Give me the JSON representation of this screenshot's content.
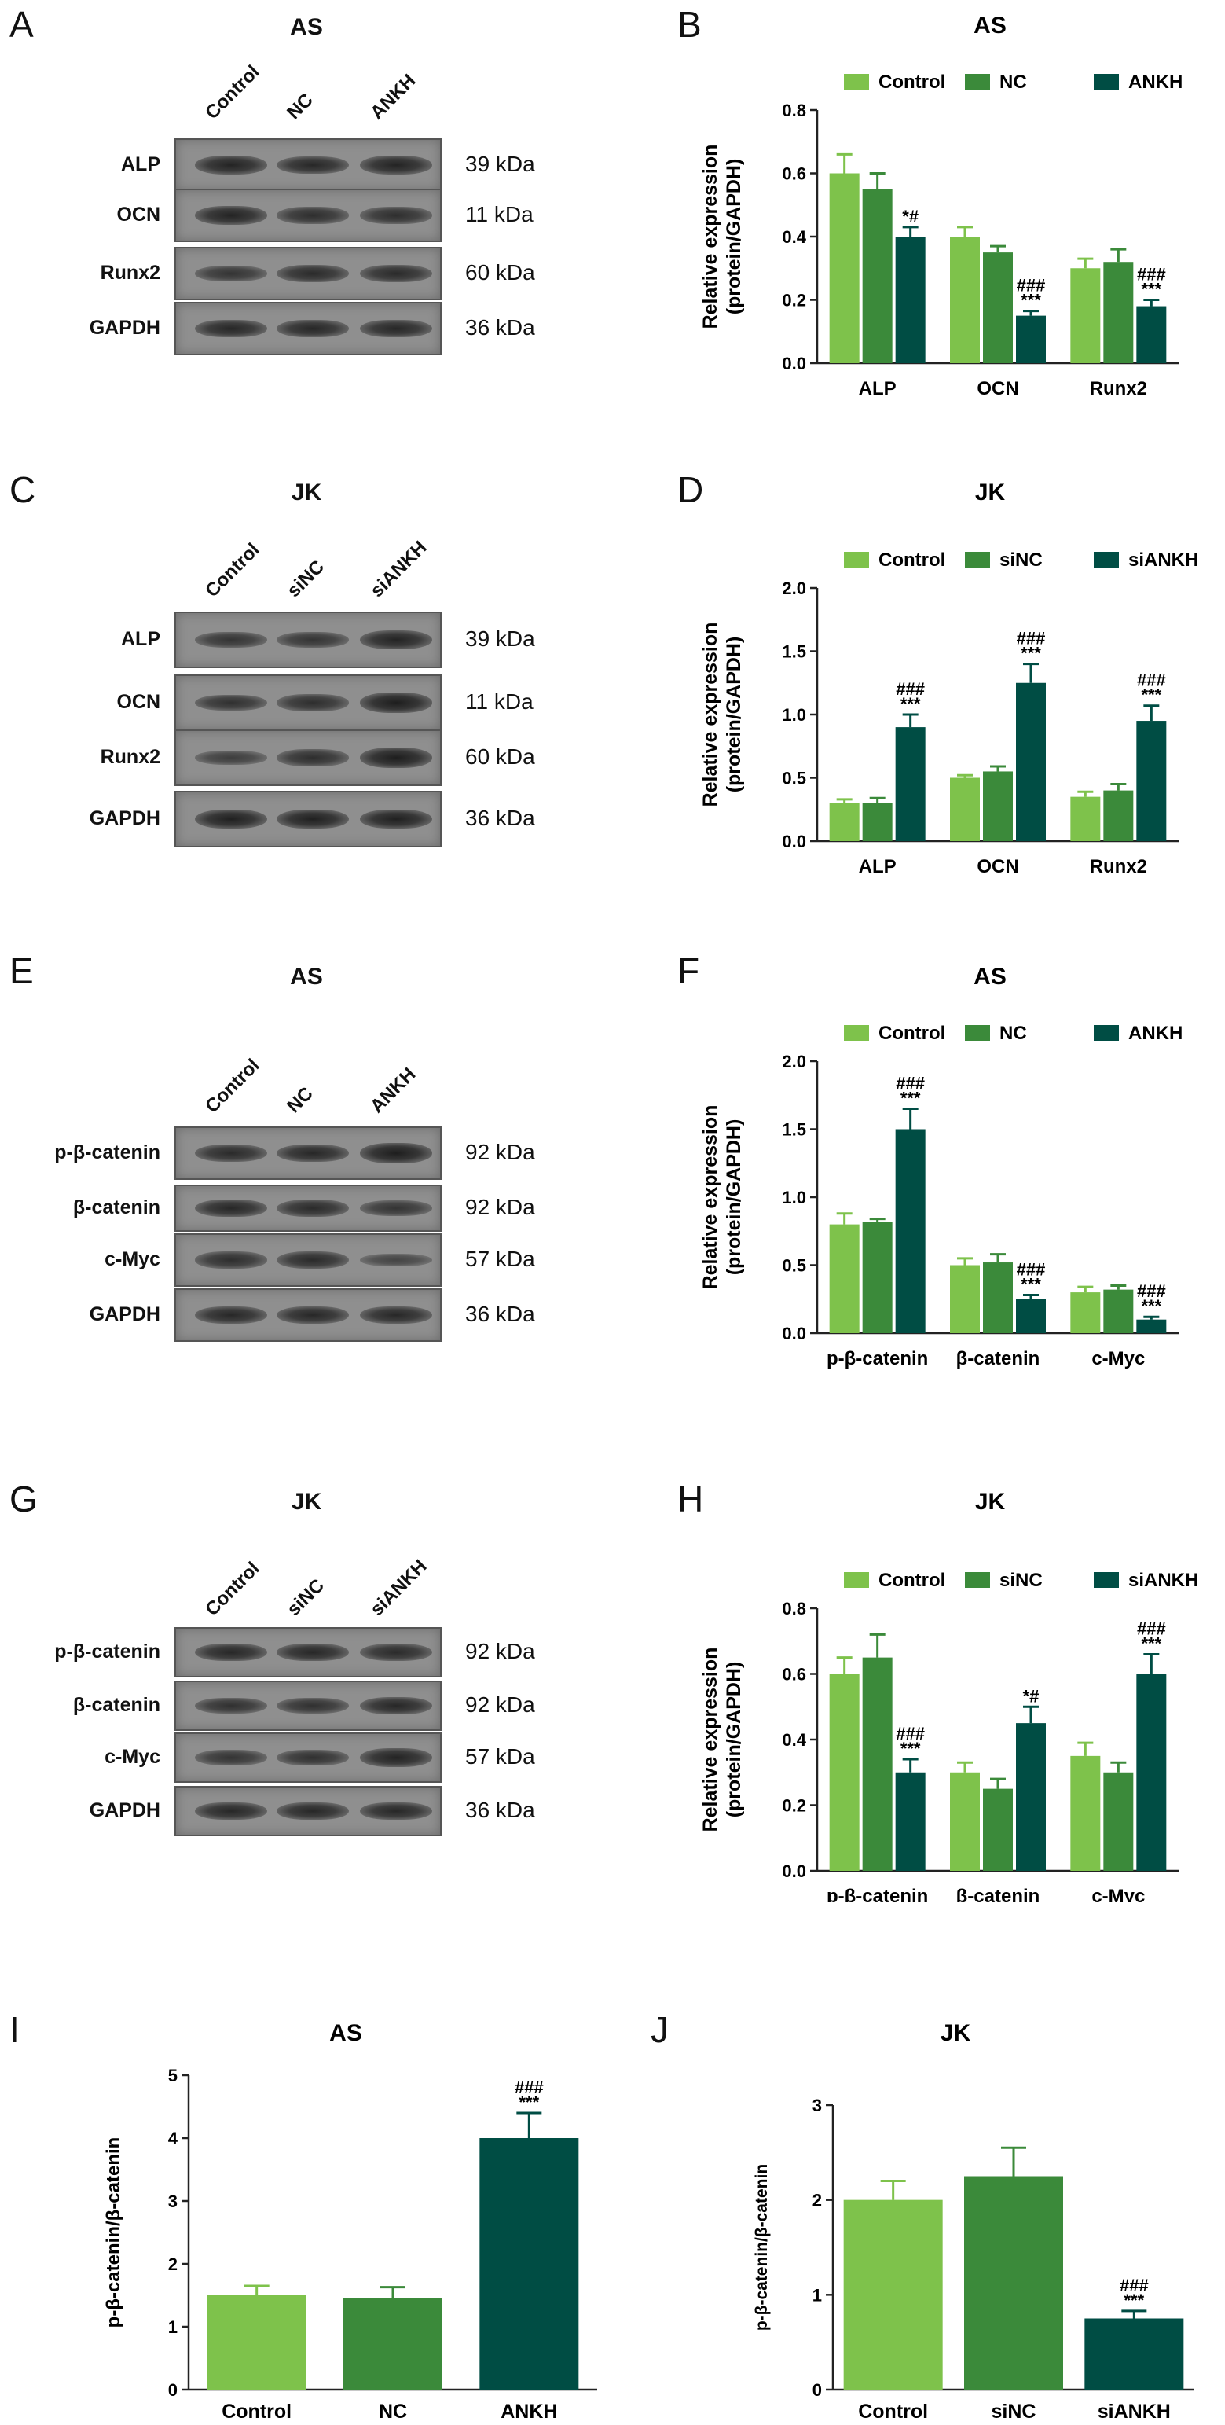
{
  "colors": {
    "c1": "#7ec24b",
    "c2": "#3b8a3a",
    "c3": "#004d44"
  },
  "blots": [
    {
      "label": "A",
      "title": "AS",
      "lanes": [
        "Control",
        "NC",
        "ANKH"
      ],
      "rows": [
        {
          "name": "ALP",
          "kda": "39 kDa",
          "i": [
            0.85,
            0.8,
            0.85
          ]
        },
        {
          "name": "OCN",
          "kda": "11 kDa",
          "i": [
            0.85,
            0.7,
            0.7
          ]
        },
        {
          "name": "Runx2",
          "kda": "60 kDa",
          "i": [
            0.6,
            0.75,
            0.75
          ]
        },
        {
          "name": "GAPDH",
          "kda": "36 kDa",
          "i": [
            0.8,
            0.8,
            0.8
          ]
        }
      ]
    },
    {
      "label": "C",
      "title": "JK",
      "lanes": [
        "Control",
        "siNC",
        "siANKH"
      ],
      "rows": [
        {
          "name": "ALP",
          "kda": "39 kDa",
          "i": [
            0.6,
            0.6,
            0.85
          ]
        },
        {
          "name": "OCN",
          "kda": "11 kDa",
          "i": [
            0.65,
            0.7,
            0.95
          ]
        },
        {
          "name": "Runx2",
          "kda": "60 kDa",
          "i": [
            0.45,
            0.7,
            0.95
          ]
        },
        {
          "name": "GAPDH",
          "kda": "36 kDa",
          "i": [
            0.9,
            0.9,
            0.9
          ]
        }
      ]
    },
    {
      "label": "E",
      "title": "AS",
      "lanes": [
        "Control",
        "NC",
        "ANKH"
      ],
      "rows": [
        {
          "name": "p-β-catenin",
          "kda": "92 kDa",
          "i": [
            0.75,
            0.8,
            0.95
          ]
        },
        {
          "name": "β-catenin",
          "kda": "92 kDa",
          "i": [
            0.8,
            0.75,
            0.6
          ]
        },
        {
          "name": "c-Myc",
          "kda": "57 kDa",
          "i": [
            0.7,
            0.75,
            0.35
          ]
        },
        {
          "name": "GAPDH",
          "kda": "36 kDa",
          "i": [
            0.8,
            0.8,
            0.8
          ]
        }
      ]
    },
    {
      "label": "G",
      "title": "JK",
      "lanes": [
        "Control",
        "siNC",
        "siANKH"
      ],
      "rows": [
        {
          "name": "p-β-catenin",
          "kda": "92 kDa",
          "i": [
            0.8,
            0.8,
            0.75
          ]
        },
        {
          "name": "β-catenin",
          "kda": "92 kDa",
          "i": [
            0.65,
            0.65,
            0.8
          ]
        },
        {
          "name": "c-Myc",
          "kda": "57 kDa",
          "i": [
            0.6,
            0.65,
            0.85
          ]
        },
        {
          "name": "GAPDH",
          "kda": "36 kDa",
          "i": [
            0.8,
            0.8,
            0.8
          ]
        }
      ]
    }
  ],
  "chart_data": [
    {
      "label": "B",
      "type": "bar",
      "title": "AS",
      "ylabel": [
        "Relative expression",
        "(protein/GAPDH)"
      ],
      "categories": [
        "ALP",
        "OCN",
        "Runx2"
      ],
      "ylim": [
        0,
        0.8
      ],
      "yticks": [
        "0.0",
        "0.2",
        "0.4",
        "0.6",
        "0.8"
      ],
      "legend": "top",
      "series": [
        {
          "name": "Control",
          "values": [
            0.6,
            0.4,
            0.3
          ],
          "err": [
            0.06,
            0.03,
            0.03
          ],
          "sig": [
            "",
            "",
            ""
          ]
        },
        {
          "name": "NC",
          "values": [
            0.55,
            0.35,
            0.32
          ],
          "err": [
            0.05,
            0.02,
            0.04
          ],
          "sig": [
            "",
            "",
            ""
          ]
        },
        {
          "name": "ANKH",
          "values": [
            0.4,
            0.15,
            0.18
          ],
          "err": [
            0.03,
            0.015,
            0.02
          ],
          "sig": [
            "*#",
            "###\n***",
            "###\n***"
          ]
        }
      ]
    },
    {
      "label": "D",
      "type": "bar",
      "title": "JK",
      "ylabel": [
        "Relative expression",
        "(protein/GAPDH)"
      ],
      "categories": [
        "ALP",
        "OCN",
        "Runx2"
      ],
      "ylim": [
        0,
        2.0
      ],
      "yticks": [
        "0.0",
        "0.5",
        "1.0",
        "1.5",
        "2.0"
      ],
      "legend": "top",
      "series": [
        {
          "name": "Control",
          "values": [
            0.3,
            0.5,
            0.35
          ],
          "err": [
            0.03,
            0.02,
            0.04
          ],
          "sig": [
            "",
            "",
            ""
          ]
        },
        {
          "name": "siNC",
          "values": [
            0.3,
            0.55,
            0.4
          ],
          "err": [
            0.04,
            0.04,
            0.05
          ],
          "sig": [
            "",
            "",
            ""
          ]
        },
        {
          "name": "siANKH",
          "values": [
            0.9,
            1.25,
            0.95
          ],
          "err": [
            0.1,
            0.15,
            0.12
          ],
          "sig": [
            "###\n***",
            "###\n***",
            "###\n***"
          ]
        }
      ]
    },
    {
      "label": "F",
      "type": "bar",
      "title": "AS",
      "ylabel": [
        "Relative expression",
        "(protein/GAPDH)"
      ],
      "categories": [
        "p-β-catenin",
        "β-catenin",
        "c-Myc"
      ],
      "ylim": [
        0,
        2.0
      ],
      "yticks": [
        "0.0",
        "0.5",
        "1.0",
        "1.5",
        "2.0"
      ],
      "legend": "top",
      "series": [
        {
          "name": "Control",
          "values": [
            0.8,
            0.5,
            0.3
          ],
          "err": [
            0.08,
            0.05,
            0.04
          ],
          "sig": [
            "",
            "",
            ""
          ]
        },
        {
          "name": "NC",
          "values": [
            0.82,
            0.52,
            0.32
          ],
          "err": [
            0.02,
            0.06,
            0.03
          ],
          "sig": [
            "",
            "",
            ""
          ]
        },
        {
          "name": "ANKH",
          "values": [
            1.5,
            0.25,
            0.1
          ],
          "err": [
            0.15,
            0.03,
            0.02
          ],
          "sig": [
            "###\n***",
            "###\n***",
            "###\n***"
          ]
        }
      ]
    },
    {
      "label": "H",
      "type": "bar",
      "title": "JK",
      "ylabel": [
        "Relative expression",
        "(protein/GAPDH)"
      ],
      "categories": [
        "p-β-catenin",
        "β-catenin",
        "c-Myc"
      ],
      "ylim": [
        0,
        0.8
      ],
      "yticks": [
        "0.0",
        "0.2",
        "0.4",
        "0.6",
        "0.8"
      ],
      "legend": "top",
      "series": [
        {
          "name": "Control",
          "values": [
            0.6,
            0.3,
            0.35
          ],
          "err": [
            0.05,
            0.03,
            0.04
          ],
          "sig": [
            "",
            "",
            ""
          ]
        },
        {
          "name": "siNC",
          "values": [
            0.65,
            0.25,
            0.3
          ],
          "err": [
            0.07,
            0.03,
            0.03
          ],
          "sig": [
            "",
            "",
            ""
          ]
        },
        {
          "name": "siANKH",
          "values": [
            0.3,
            0.45,
            0.6
          ],
          "err": [
            0.04,
            0.05,
            0.06
          ],
          "sig": [
            "###\n***",
            "*#",
            "###\n***"
          ]
        }
      ]
    },
    {
      "label": "I",
      "type": "bar",
      "title": "AS",
      "ylabel": [
        "p-β-catenin/β-catenin"
      ],
      "categories": [
        "Control",
        "NC",
        "ANKH"
      ],
      "ylim": [
        0,
        5
      ],
      "yticks": [
        "0",
        "1",
        "2",
        "3",
        "4",
        "5"
      ],
      "values": [
        1.5,
        1.45,
        4.0
      ],
      "err": [
        0.15,
        0.18,
        0.4
      ],
      "sig": [
        "",
        "",
        "###\n***"
      ]
    },
    {
      "label": "J",
      "type": "bar",
      "title": "JK",
      "ylabel": [
        "p-β-catenin/β-catenin"
      ],
      "categories": [
        "Control",
        "siNC",
        "siANKH"
      ],
      "ylim": [
        0,
        3
      ],
      "yticks": [
        "0",
        "1",
        "2",
        "3"
      ],
      "values": [
        2.0,
        2.25,
        0.75
      ],
      "err": [
        0.2,
        0.3,
        0.08
      ],
      "sig": [
        "",
        "",
        "###\n***"
      ]
    }
  ]
}
